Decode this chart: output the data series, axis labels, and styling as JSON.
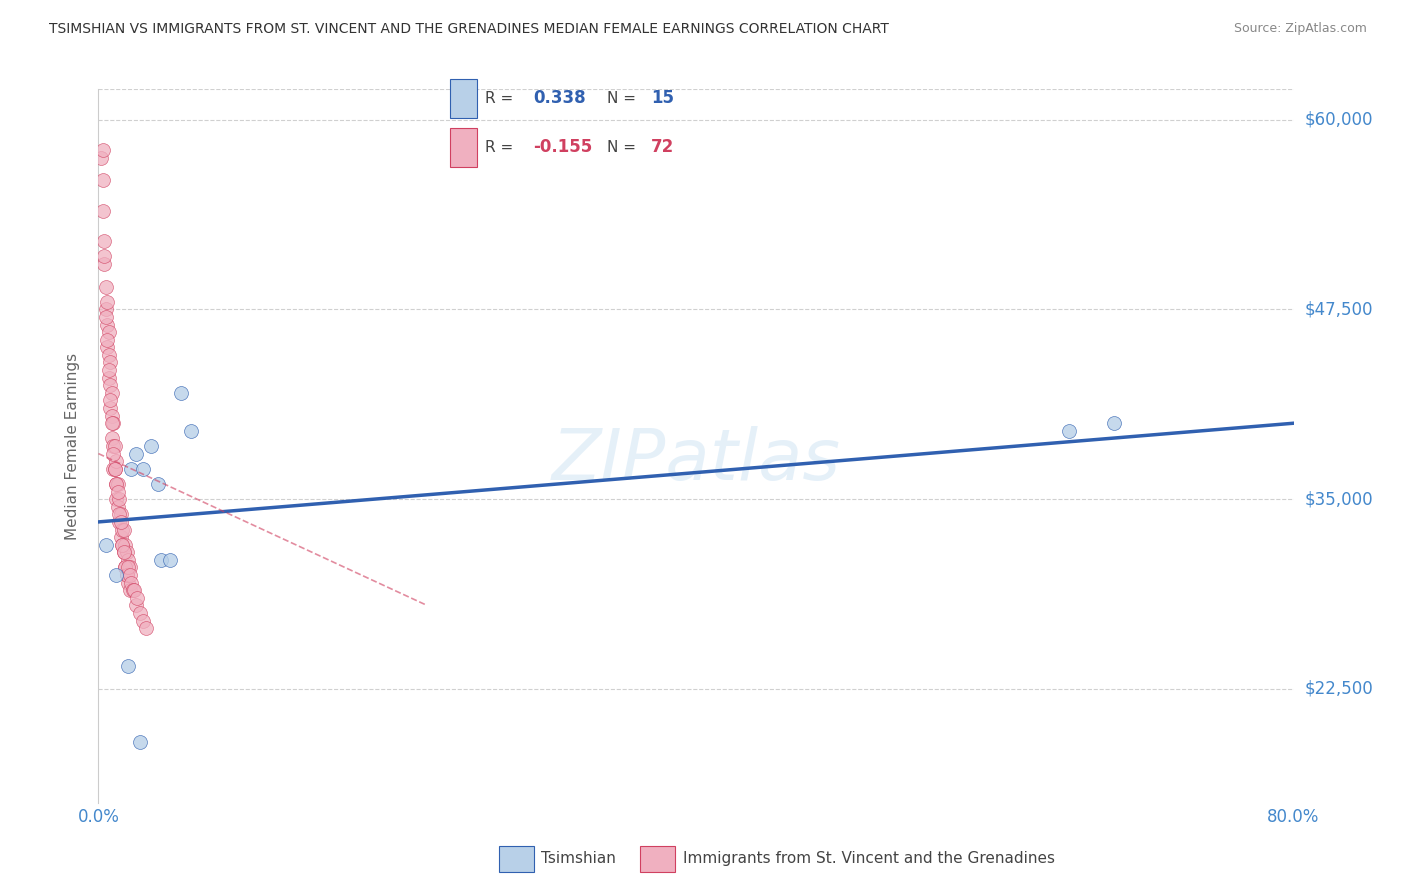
{
  "title": "TSIMSHIAN VS IMMIGRANTS FROM ST. VINCENT AND THE GRENADINES MEDIAN FEMALE EARNINGS CORRELATION CHART",
  "source": "Source: ZipAtlas.com",
  "ylabel": "Median Female Earnings",
  "xlim": [
    0.0,
    0.8
  ],
  "ylim": [
    15000,
    62000
  ],
  "yticks": [
    22500,
    35000,
    47500,
    60000
  ],
  "ytick_labels": [
    "$22,500",
    "$35,000",
    "$47,500",
    "$60,000"
  ],
  "xticks": [
    0.0,
    0.1,
    0.2,
    0.3,
    0.4,
    0.5,
    0.6,
    0.7,
    0.8
  ],
  "xtick_labels": [
    "0.0%",
    "",
    "",
    "",
    "",
    "",
    "",
    "",
    "80.0%"
  ],
  "watermark": "ZIPatlas",
  "blue_R": 0.338,
  "blue_N": 15,
  "pink_R": -0.155,
  "pink_N": 72,
  "blue_color": "#b8d0e8",
  "pink_color": "#f0b0c0",
  "blue_line_color": "#3060b0",
  "pink_line_color": "#d04060",
  "grid_color": "#d0d0d0",
  "title_color": "#333333",
  "right_label_color": "#4488cc",
  "blue_scatter_x": [
    0.005,
    0.012,
    0.022,
    0.025,
    0.03,
    0.035,
    0.04,
    0.042,
    0.048,
    0.055,
    0.062,
    0.02,
    0.028,
    0.65,
    0.68
  ],
  "blue_scatter_y": [
    32000,
    30000,
    37000,
    38000,
    37000,
    38500,
    36000,
    31000,
    31000,
    42000,
    39500,
    24000,
    19000,
    39500,
    40000
  ],
  "pink_scatter_x": [
    0.002,
    0.003,
    0.003,
    0.004,
    0.004,
    0.005,
    0.005,
    0.006,
    0.006,
    0.006,
    0.007,
    0.007,
    0.007,
    0.008,
    0.008,
    0.008,
    0.009,
    0.009,
    0.009,
    0.01,
    0.01,
    0.01,
    0.011,
    0.011,
    0.012,
    0.012,
    0.012,
    0.013,
    0.013,
    0.014,
    0.014,
    0.015,
    0.015,
    0.016,
    0.016,
    0.017,
    0.017,
    0.018,
    0.018,
    0.019,
    0.019,
    0.02,
    0.02,
    0.021,
    0.021,
    0.003,
    0.004,
    0.005,
    0.006,
    0.007,
    0.008,
    0.009,
    0.01,
    0.011,
    0.012,
    0.013,
    0.014,
    0.015,
    0.016,
    0.017,
    0.018,
    0.019,
    0.02,
    0.021,
    0.022,
    0.023,
    0.024,
    0.025,
    0.026,
    0.028,
    0.03,
    0.032
  ],
  "pink_scatter_y": [
    57500,
    56000,
    54000,
    52000,
    50500,
    49000,
    47500,
    48000,
    46500,
    45000,
    46000,
    44500,
    43000,
    44000,
    42500,
    41000,
    42000,
    40500,
    39000,
    40000,
    38500,
    37000,
    38500,
    37000,
    37500,
    36000,
    35000,
    36000,
    34500,
    35000,
    33500,
    34000,
    32500,
    33000,
    32000,
    33000,
    31500,
    32000,
    30500,
    31500,
    30000,
    31000,
    29500,
    30500,
    29000,
    58000,
    51000,
    47000,
    45500,
    43500,
    41500,
    40000,
    38000,
    37000,
    36000,
    35500,
    34000,
    33500,
    32000,
    31500,
    30500,
    30000,
    30500,
    30000,
    29500,
    29000,
    29000,
    28000,
    28500,
    27500,
    27000,
    26500
  ],
  "blue_line_x0": 0.0,
  "blue_line_x1": 0.8,
  "blue_line_y0": 33500,
  "blue_line_y1": 40000,
  "pink_line_x0": 0.0,
  "pink_line_x1": 0.22,
  "pink_line_y0": 38000,
  "pink_line_y1": 28000
}
